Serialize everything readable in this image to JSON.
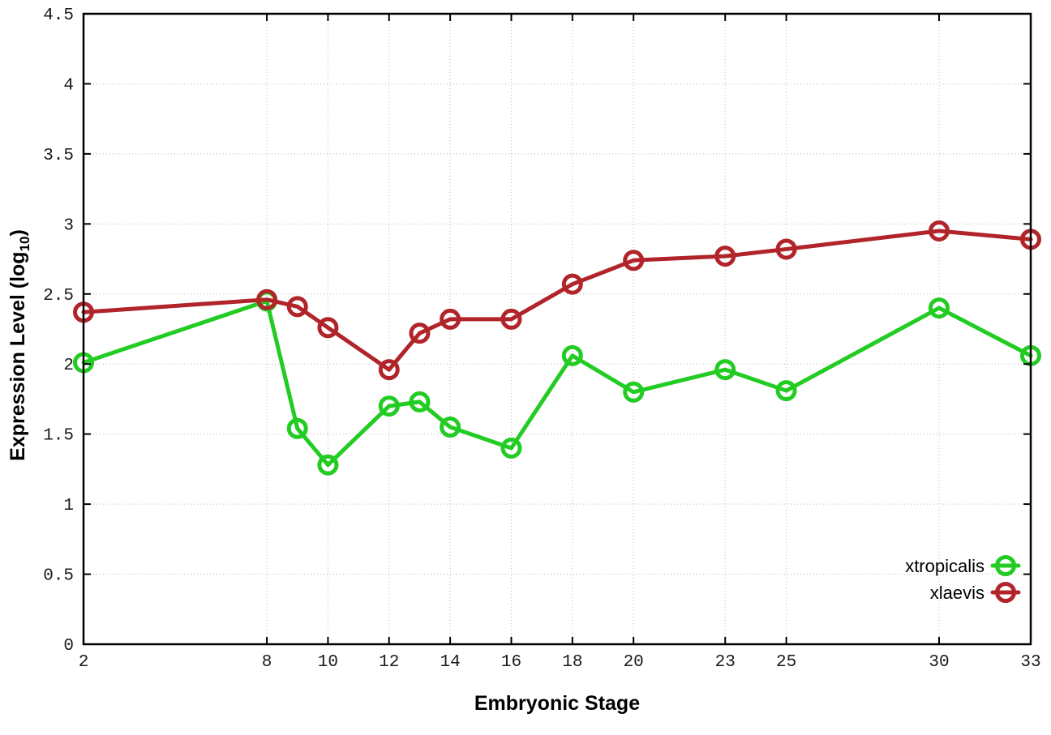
{
  "chart_data": {
    "type": "line",
    "title": "",
    "xlabel": "Embryonic Stage",
    "ylabel": "Expression Level (log10)",
    "ylabel_parts": {
      "main": "Expression Level (log",
      "sub": "10",
      "end": ")"
    },
    "xlim": [
      2,
      33
    ],
    "ylim": [
      0,
      4.5
    ],
    "grid": true,
    "marker": "open-circle",
    "legend_position": "bottom-right-inside",
    "x": [
      2,
      8,
      9,
      10,
      12,
      13,
      14,
      16,
      18,
      20,
      23,
      25,
      30,
      33
    ],
    "series": [
      {
        "name": "xtropicalis",
        "color": "#22cc22",
        "values": [
          2.01,
          2.45,
          1.54,
          1.28,
          1.7,
          1.73,
          1.55,
          1.4,
          2.06,
          1.8,
          1.96,
          1.81,
          2.4,
          2.06
        ]
      },
      {
        "name": "xlaevis",
        "color": "#b0242a",
        "values": [
          2.37,
          2.46,
          2.41,
          2.26,
          1.96,
          2.22,
          2.32,
          2.32,
          2.57,
          2.74,
          2.77,
          2.82,
          2.95,
          2.89
        ]
      }
    ],
    "x_ticks": [
      {
        "v": 2,
        "label": "2"
      },
      {
        "v": 8,
        "label": "8"
      },
      {
        "v": 10,
        "label": "10"
      },
      {
        "v": 12,
        "label": "12"
      },
      {
        "v": 14,
        "label": "14"
      },
      {
        "v": 16,
        "label": "16"
      },
      {
        "v": 18,
        "label": "18"
      },
      {
        "v": 20,
        "label": "20"
      },
      {
        "v": 23,
        "label": "23"
      },
      {
        "v": 25,
        "label": "25"
      },
      {
        "v": 30,
        "label": "30"
      },
      {
        "v": 33,
        "label": "33"
      }
    ],
    "y_ticks": [
      {
        "v": 0,
        "label": "0"
      },
      {
        "v": 0.5,
        "label": "0.5"
      },
      {
        "v": 1,
        "label": "1"
      },
      {
        "v": 1.5,
        "label": "1.5"
      },
      {
        "v": 2,
        "label": "2"
      },
      {
        "v": 2.5,
        "label": "2.5"
      },
      {
        "v": 3,
        "label": "3"
      },
      {
        "v": 3.5,
        "label": "3.5"
      },
      {
        "v": 4,
        "label": "4"
      },
      {
        "v": 4.5,
        "label": "4.5"
      }
    ],
    "colors": {
      "axis": "#000000",
      "grid": "#b8b8b8",
      "background": "#ffffff"
    }
  }
}
